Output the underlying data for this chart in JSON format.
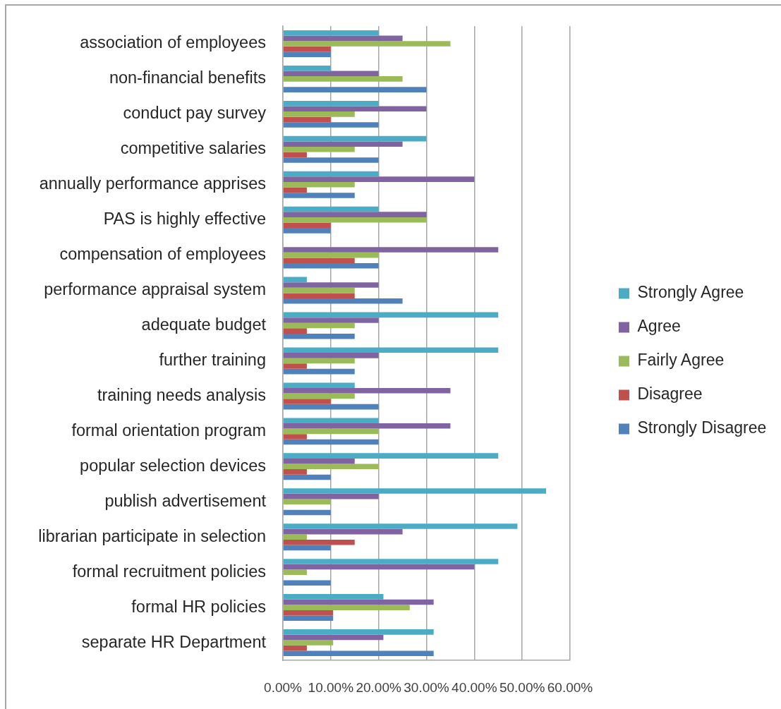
{
  "chart_data": {
    "type": "bar",
    "orientation": "horizontal",
    "categories": [
      "association of employees",
      "non-financial benefits",
      "conduct pay survey",
      "competitive salaries",
      "annually performance apprises",
      "PAS is highly effective",
      "compensation of employees",
      "performance appraisal system",
      "adequate budget",
      "further training",
      "training needs analysis",
      "formal orientation program",
      "popular selection devices",
      "publish advertisement",
      "librarian participate in selection",
      "formal recruitment policies",
      "formal HR policies",
      "separate HR Department"
    ],
    "series": [
      {
        "name": "Strongly Agree",
        "color": "#4bacc6",
        "values": [
          20,
          10,
          20,
          30,
          20,
          20,
          0,
          5,
          45,
          45,
          15,
          20,
          45,
          55,
          49,
          45,
          21,
          31.5
        ]
      },
      {
        "name": "Agree",
        "color": "#8064a2",
        "values": [
          25,
          20,
          30,
          25,
          40,
          30,
          45,
          20,
          20,
          20,
          35,
          35,
          15,
          20,
          25,
          40,
          31.5,
          21
        ]
      },
      {
        "name": "Fairly Agree",
        "color": "#9bbb59",
        "values": [
          35,
          25,
          15,
          15,
          15,
          30,
          20,
          15,
          15,
          15,
          15,
          20,
          20,
          10,
          5,
          5,
          26.5,
          10.5
        ]
      },
      {
        "name": "Disagree",
        "color": "#c0504d",
        "values": [
          10,
          0,
          10,
          5,
          5,
          10,
          15,
          15,
          5,
          5,
          10,
          5,
          5,
          0,
          15,
          0,
          10.5,
          5
        ]
      },
      {
        "name": "Strongly Disagree",
        "color": "#4f81bd",
        "values": [
          10,
          30,
          20,
          20,
          15,
          10,
          20,
          25,
          15,
          15,
          20,
          20,
          10,
          10,
          10,
          10,
          10.5,
          31.5
        ]
      }
    ],
    "xlim": [
      0,
      60
    ],
    "xticks": [
      {
        "value": 0,
        "label": "0.00%"
      },
      {
        "value": 10,
        "label": "10.00%"
      },
      {
        "value": 20,
        "label": "20.00%"
      },
      {
        "value": 30,
        "label": "30.00%"
      },
      {
        "value": 40,
        "label": "40.00%"
      },
      {
        "value": 50,
        "label": "50.00%"
      },
      {
        "value": 60,
        "label": "60.00%"
      }
    ],
    "grid": "x",
    "legend": "right"
  }
}
